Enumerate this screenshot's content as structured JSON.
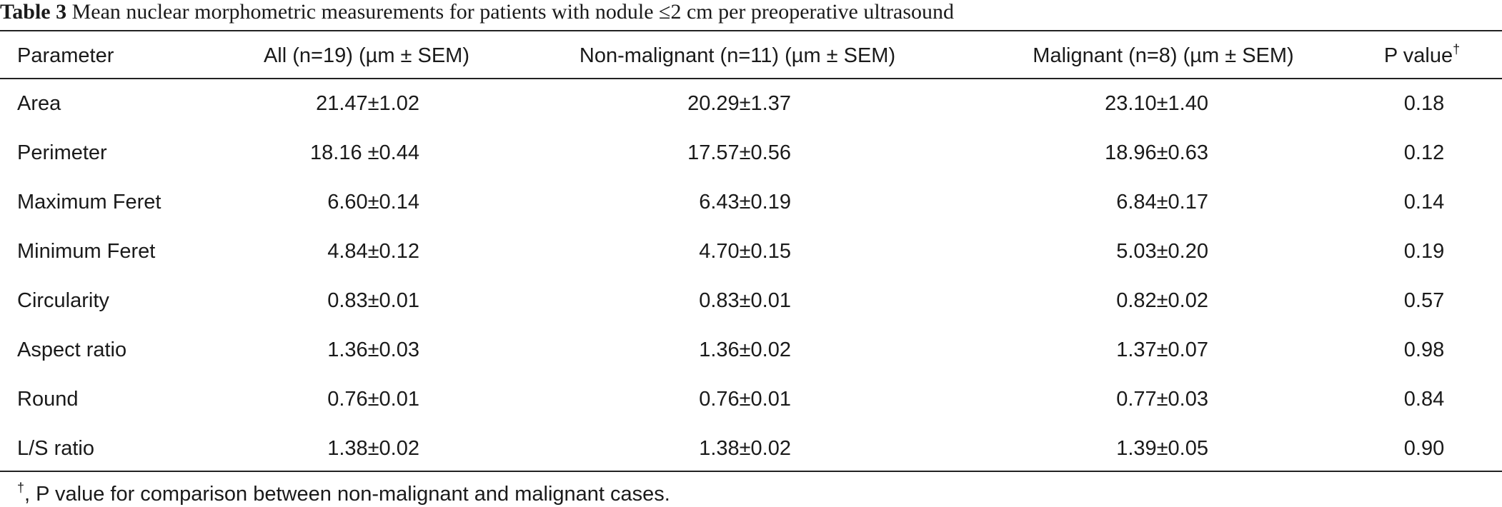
{
  "title": {
    "label": "Table 3",
    "text": "Mean nuclear morphometric measurements for patients with nodule ≤2 cm per preoperative ultrasound"
  },
  "table": {
    "headers": [
      "Parameter",
      "All (n=19) (µm ± SEM)",
      "Non-malignant (n=11) (µm ± SEM)",
      "Malignant (n=8) (µm ± SEM)",
      "P value"
    ],
    "header_mark": "†",
    "rows": [
      [
        "Area",
        "21.47±1.02",
        "20.29±1.37",
        "23.10±1.40",
        "0.18"
      ],
      [
        "Perimeter",
        "18.16 ±0.44",
        "17.57±0.56",
        "18.96±0.63",
        "0.12"
      ],
      [
        "Maximum Feret",
        "6.60±0.14",
        "6.43±0.19",
        "6.84±0.17",
        "0.14"
      ],
      [
        "Minimum Feret",
        "4.84±0.12",
        "4.70±0.15",
        "5.03±0.20",
        "0.19"
      ],
      [
        "Circularity",
        "0.83±0.01",
        "0.83±0.01",
        "0.82±0.02",
        "0.57"
      ],
      [
        "Aspect ratio",
        "1.36±0.03",
        "1.36±0.02",
        "1.37±0.07",
        "0.98"
      ],
      [
        "Round",
        "0.76±0.01",
        "0.76±0.01",
        "0.77±0.03",
        "0.84"
      ],
      [
        "L/S ratio",
        "1.38±0.02",
        "1.38±0.02",
        "1.39±0.05",
        "0.90"
      ]
    ]
  },
  "footnote": {
    "mark": "†",
    "text": ", P value for comparison between non-malignant and malignant cases."
  }
}
